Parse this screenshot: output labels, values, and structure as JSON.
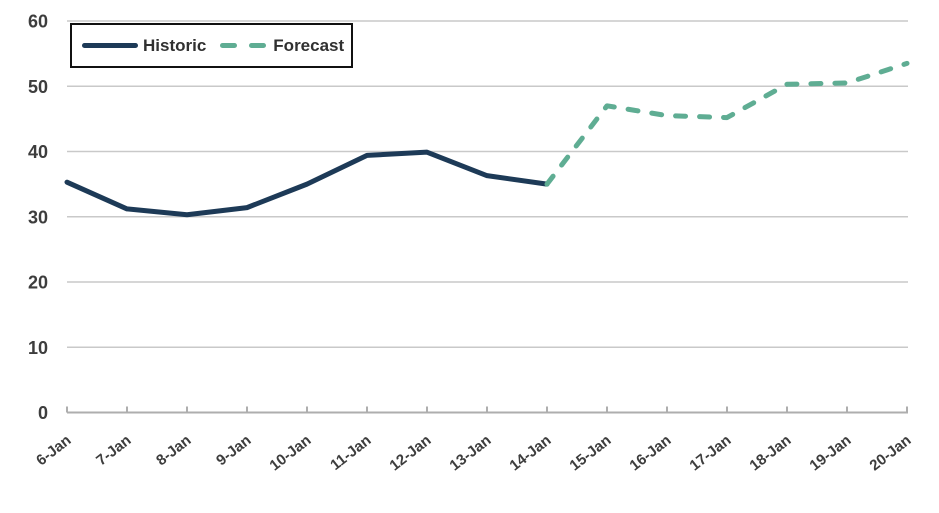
{
  "chart_data": {
    "type": "line",
    "categories": [
      "6-Jan",
      "7-Jan",
      "8-Jan",
      "9-Jan",
      "10-Jan",
      "11-Jan",
      "12-Jan",
      "13-Jan",
      "14-Jan",
      "15-Jan",
      "16-Jan",
      "17-Jan",
      "18-Jan",
      "19-Jan",
      "20-Jan"
    ],
    "series": [
      {
        "name": "Historic",
        "style": "solid",
        "color": "#1d3a57",
        "values": [
          35.3,
          31.2,
          30.3,
          31.4,
          35.0,
          39.4,
          39.9,
          36.3,
          35.0,
          null,
          null,
          null,
          null,
          null,
          null
        ]
      },
      {
        "name": "Forecast",
        "style": "dashed",
        "color": "#5fad93",
        "values": [
          null,
          null,
          null,
          null,
          null,
          null,
          null,
          null,
          35.0,
          47.0,
          45.5,
          45.2,
          50.3,
          50.5,
          53.5
        ]
      }
    ],
    "title": "",
    "xlabel": "",
    "ylabel": "",
    "ylim": [
      0,
      60
    ],
    "yticks": [
      0,
      10,
      20,
      30,
      40,
      50,
      60
    ],
    "grid": true,
    "legend_position": "top-left"
  },
  "legend": {
    "historic_label": "Historic",
    "forecast_label": "Forecast"
  },
  "colors": {
    "background": "#ffffff",
    "gridline": "#c9c9c9",
    "axis": "#aeaeae",
    "tick_label": "#3d3d3d",
    "legend_border": "#111111",
    "legend_text": "#303030"
  }
}
